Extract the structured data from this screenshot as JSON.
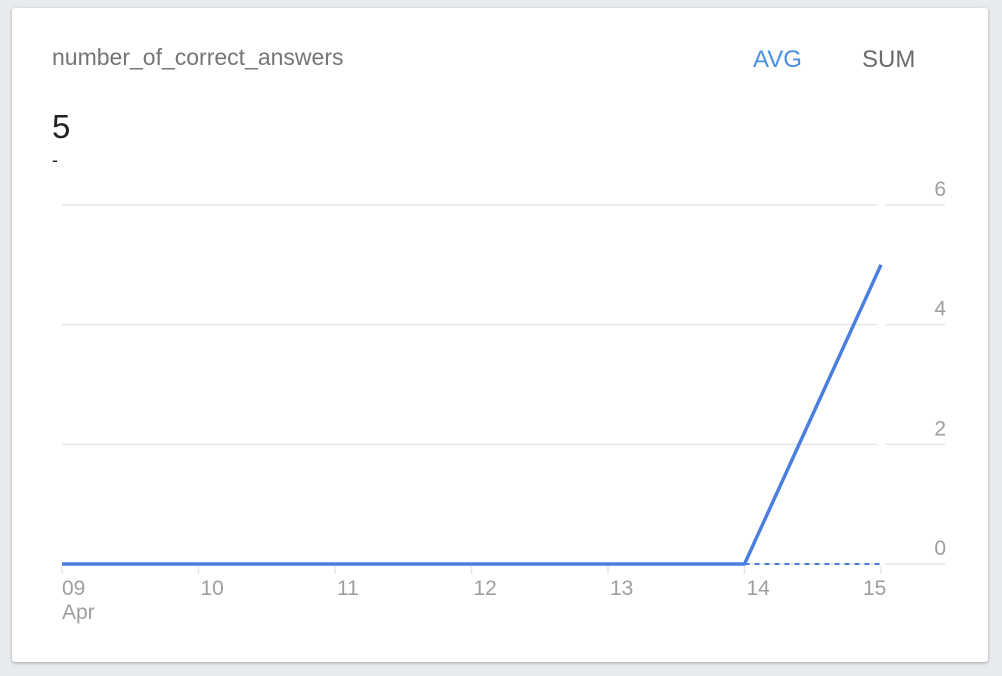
{
  "card": {
    "title": "number_of_correct_answers",
    "toggles": {
      "avg": "AVG",
      "sum": "SUM",
      "active": "AVG"
    },
    "value": "5",
    "delta": "-"
  },
  "colors": {
    "line": "#4a7fe0",
    "active_toggle": "#4a90e2",
    "grid": "#e6e6e6"
  },
  "chart_data": {
    "type": "line",
    "categories": [
      "09",
      "10",
      "11",
      "12",
      "13",
      "14",
      "15"
    ],
    "month_label": "Apr",
    "series": [
      {
        "values": [
          0,
          0,
          0,
          0,
          0,
          0,
          5
        ],
        "style": "solid"
      },
      {
        "values": [
          null,
          null,
          null,
          null,
          null,
          0,
          0
        ],
        "style": "dashed"
      }
    ],
    "yticks": [
      "0",
      "2",
      "4",
      "6"
    ],
    "ylim": [
      0,
      6
    ],
    "y_axis_position": "right",
    "grid": true,
    "title": "",
    "xlabel": "",
    "ylabel": ""
  }
}
